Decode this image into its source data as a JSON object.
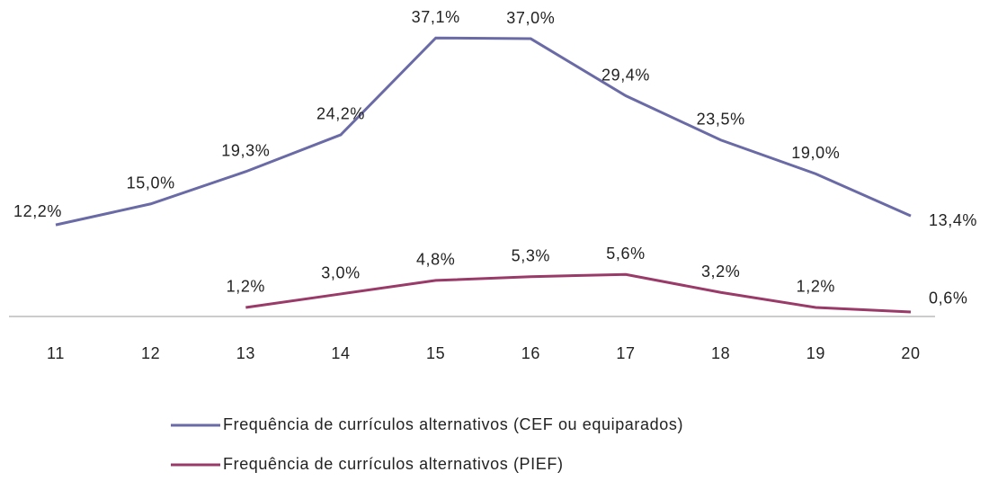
{
  "chart_data": {
    "type": "line",
    "categories": [
      "11",
      "12",
      "13",
      "14",
      "15",
      "16",
      "17",
      "18",
      "19",
      "20"
    ],
    "ylim": [
      0,
      40
    ],
    "series": [
      {
        "name": "Frequência de currículos alternativos (CEF ou equiparados)",
        "color": "#6a6aa6",
        "values": [
          12.2,
          15.0,
          19.3,
          24.2,
          37.1,
          37.0,
          29.4,
          23.5,
          19.0,
          13.4
        ],
        "value_labels": [
          "12,2%",
          "15,0%",
          "19,3%",
          "24,2%",
          "37,1%",
          "37,0%",
          "29,4%",
          "23,5%",
          "19,0%",
          "13,4%"
        ]
      },
      {
        "name": "Frequência de currículos alternativos (PIEF)",
        "color": "#9a3a68",
        "values": [
          null,
          null,
          1.2,
          3.0,
          4.8,
          5.3,
          5.6,
          3.2,
          1.2,
          0.6
        ],
        "value_labels": [
          null,
          null,
          "1,2%",
          "3,0%",
          "4,8%",
          "5,3%",
          "5,6%",
          "3,2%",
          "1,2%",
          "0,6%"
        ]
      }
    ]
  }
}
